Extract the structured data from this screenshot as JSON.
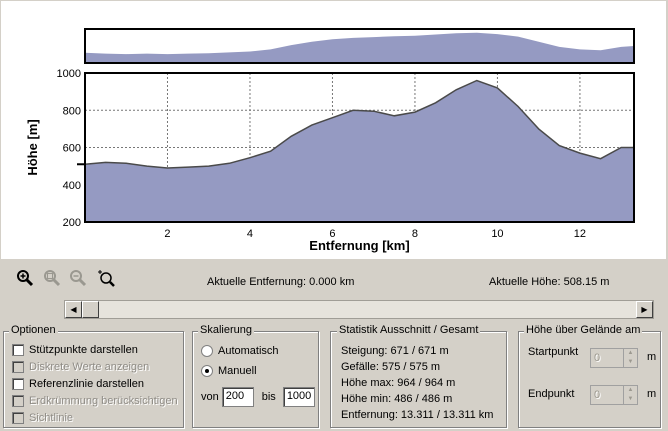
{
  "chart_data": {
    "type": "area",
    "xlabel": "Entfernung [km]",
    "ylabel": "Höhe [m]",
    "xlim": [
      0,
      13.311
    ],
    "ylim": [
      200,
      1000
    ],
    "xticks": [
      2,
      4,
      6,
      8,
      10,
      12
    ],
    "yticks": [
      200,
      400,
      600,
      800,
      1000
    ],
    "grid": true,
    "fill_color": "#959ac2",
    "line_color": "#4a4a4a",
    "x": [
      0,
      0.5,
      1.0,
      1.5,
      2.0,
      2.5,
      3.0,
      3.5,
      4.0,
      4.5,
      5.0,
      5.5,
      6.0,
      6.5,
      7.0,
      7.5,
      8.0,
      8.5,
      9.0,
      9.5,
      10.0,
      10.5,
      11.0,
      11.5,
      12.0,
      12.5,
      13.0,
      13.311
    ],
    "y": [
      510,
      520,
      515,
      500,
      490,
      495,
      500,
      515,
      545,
      580,
      660,
      720,
      760,
      800,
      795,
      770,
      790,
      840,
      910,
      960,
      920,
      820,
      700,
      610,
      570,
      540,
      600,
      600
    ]
  },
  "overview_data": {
    "xlim": [
      0,
      13.311
    ],
    "ylim": [
      200,
      1000
    ],
    "x": [
      0,
      0.5,
      1.0,
      1.5,
      2.0,
      2.5,
      3.0,
      3.5,
      4.0,
      4.5,
      5.0,
      5.5,
      6.0,
      6.5,
      7.0,
      7.5,
      8.0,
      8.5,
      9.0,
      9.5,
      10.0,
      10.5,
      11.0,
      11.5,
      12.0,
      12.5,
      13.0,
      13.311
    ],
    "y": [
      440,
      420,
      410,
      420,
      410,
      420,
      430,
      450,
      470,
      520,
      620,
      700,
      760,
      790,
      810,
      830,
      840,
      870,
      900,
      910,
      880,
      820,
      700,
      580,
      520,
      500,
      580,
      600
    ]
  },
  "toolbar": {
    "zoom_in_icon": "zoom-in-icon",
    "zoom_fit_icon": "zoom-fit-icon",
    "zoom_out_icon": "zoom-out-icon",
    "zoom_add_icon": "zoom-add-icon"
  },
  "readouts": {
    "entfernung": "Aktuelle Entfernung: 0.000 km",
    "hoehe": "Aktuelle Höhe: 508.15 m"
  },
  "optionen": {
    "title": "Optionen",
    "items": [
      {
        "label": "Stützpunkte darstellen",
        "enabled": true
      },
      {
        "label": "Diskrete Werte anzeigen",
        "enabled": false
      },
      {
        "label": "Referenzlinie darstellen",
        "enabled": true
      },
      {
        "label": "Erdkrümmung berücksichtigen",
        "enabled": false
      },
      {
        "label": "Sichtlinie",
        "enabled": false
      }
    ]
  },
  "skalierung": {
    "title": "Skalierung",
    "automatisch": "Automatisch",
    "manuell": "Manuell",
    "selected": "manuell",
    "von_label": "von",
    "von_value": "200",
    "bis_label": "bis",
    "bis_value": "1000"
  },
  "statistik": {
    "title": "Statistik  Ausschnitt / Gesamt",
    "steigung": "Steigung: 671 / 671 m",
    "gefaelle": "Gefälle: 575 / 575 m",
    "hoehe_max": "Höhe max: 964 / 964 m",
    "hoehe_min": "Höhe min: 486 / 486 m",
    "entfernung": "Entfernung: 13.311 / 13.311 km"
  },
  "gelaende": {
    "title": "Höhe über Gelände am",
    "startpunkt_label": "Startpunkt",
    "startpunkt_value": "0",
    "endpunkt_label": "Endpunkt",
    "endpunkt_value": "0",
    "unit": "m"
  }
}
